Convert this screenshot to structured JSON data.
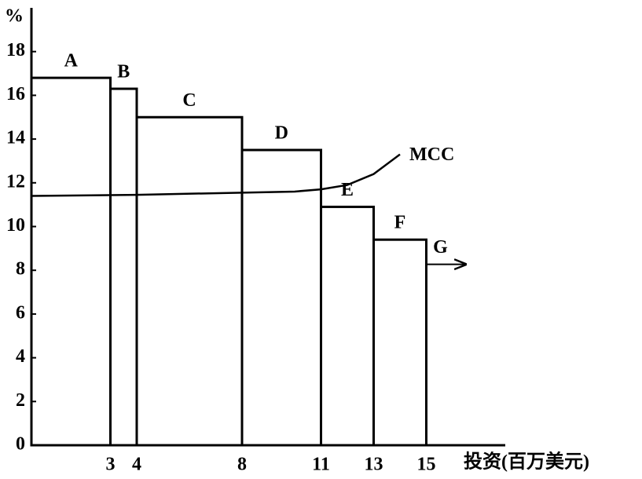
{
  "chart_data": {
    "type": "histogram",
    "bins": [
      0,
      3,
      4,
      8,
      11,
      13,
      15
    ],
    "values": [
      16.8,
      16.3,
      15,
      13.5,
      10.9,
      9.4
    ],
    "bar_labels": [
      "A",
      "B",
      "C",
      "D",
      "E",
      "F"
    ],
    "extension_label": "G",
    "color": "#000000",
    "series": [
      {
        "name": "MCC",
        "color": "#000000",
        "x": [
          0,
          4,
          8,
          10,
          11,
          12,
          13,
          14
        ],
        "values": [
          11.4,
          11.45,
          11.55,
          11.6,
          11.7,
          11.9,
          12.4,
          13.3
        ]
      }
    ],
    "xlabel": "投资(百万美元)",
    "ylabel": "%",
    "xlim": [
      0,
      18
    ],
    "ylim": [
      0,
      20
    ],
    "xticks": [
      3,
      4,
      8,
      11,
      13,
      15
    ],
    "yticks": [
      0,
      2,
      4,
      6,
      8,
      10,
      12,
      14,
      16,
      18
    ],
    "grid": false
  }
}
